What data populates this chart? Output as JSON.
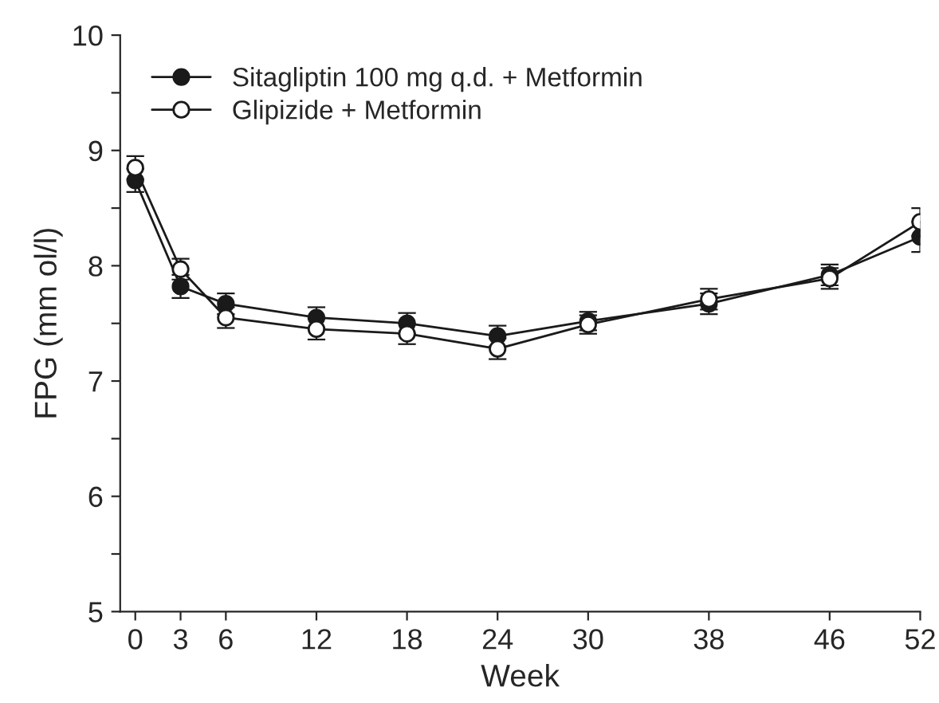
{
  "chart_data": {
    "type": "line",
    "xlabel": "Week",
    "ylabel": "FPG (mm ol/l)",
    "x": [
      0,
      3,
      6,
      12,
      18,
      24,
      30,
      38,
      46,
      52
    ],
    "series": [
      {
        "name": "Sitagliptin 100 mg q.d. + Metformin",
        "color": "#1a1a1a",
        "values": [
          8.74,
          7.82,
          7.67,
          7.55,
          7.5,
          7.39,
          7.52,
          7.67,
          7.92,
          8.25
        ],
        "errors": [
          0.1,
          0.1,
          0.09,
          0.09,
          0.09,
          0.09,
          0.08,
          0.09,
          0.09,
          0.13
        ]
      },
      {
        "name": "Glipizide + Metformin",
        "color": "#ffffff",
        "values": [
          8.85,
          7.97,
          7.55,
          7.45,
          7.41,
          7.28,
          7.49,
          7.71,
          7.89,
          8.38
        ],
        "errors": [
          0.1,
          0.09,
          0.09,
          0.09,
          0.09,
          0.09,
          0.08,
          0.09,
          0.09,
          0.12
        ]
      }
    ],
    "xlim": [
      -1,
      52
    ],
    "xticks": [
      0,
      3,
      6,
      12,
      18,
      24,
      30,
      38,
      46,
      52
    ],
    "ylim": [
      5,
      10
    ],
    "yticks": [
      5,
      {
        "value": 5.5,
        "label": null
      },
      6,
      {
        "value": 6.5,
        "label": null
      },
      7,
      {
        "value": 7.5,
        "label": null
      },
      8,
      {
        "value": 8.5,
        "label": null
      },
      9,
      {
        "value": 9.5,
        "label": null
      },
      10
    ],
    "grid": false,
    "legend": "top left",
    "marker": "circle",
    "line_style": "solid"
  }
}
